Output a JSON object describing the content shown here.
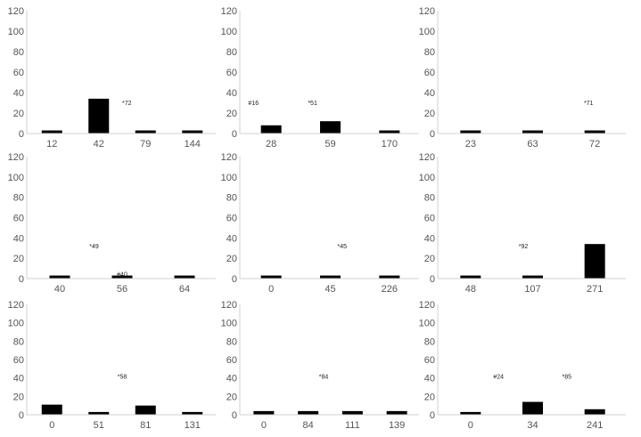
{
  "chart_data": [
    {
      "type": "bar",
      "categories": [
        "12",
        "42",
        "79",
        "144"
      ],
      "values": [
        3,
        34,
        3,
        3
      ],
      "ylim": [
        0,
        120
      ],
      "yticks": [
        0,
        20,
        40,
        60,
        80,
        100,
        120
      ],
      "annotations": [
        {
          "text": "*72",
          "x": 1.6,
          "y": 28
        }
      ]
    },
    {
      "type": "bar",
      "categories": [
        "28",
        "59",
        "170"
      ],
      "values": [
        8,
        12,
        3
      ],
      "ylim": [
        0,
        120
      ],
      "yticks": [
        0,
        20,
        40,
        60,
        80,
        100,
        120
      ],
      "annotations": [
        {
          "text": "#16",
          "x": -0.3,
          "y": 28
        },
        {
          "text": "*51",
          "x": 0.7,
          "y": 28
        }
      ]
    },
    {
      "type": "bar",
      "categories": [
        "23",
        "63",
        "72"
      ],
      "values": [
        3,
        3,
        3
      ],
      "ylim": [
        0,
        120
      ],
      "yticks": [
        0,
        20,
        40,
        60,
        80,
        100,
        120
      ],
      "annotations": [
        {
          "text": "*71",
          "x": 1.9,
          "y": 28
        }
      ]
    },
    {
      "type": "bar",
      "categories": [
        "40",
        "56",
        "64"
      ],
      "values": [
        3,
        3,
        3
      ],
      "ylim": [
        0,
        120
      ],
      "yticks": [
        0,
        20,
        40,
        60,
        80,
        100,
        120
      ],
      "annotations": [
        {
          "text": "*49",
          "x": 0.55,
          "y": 30
        },
        {
          "text": "#40",
          "x": 1.0,
          "y": 2
        }
      ]
    },
    {
      "type": "bar",
      "categories": [
        "0",
        "45",
        "226"
      ],
      "values": [
        3,
        3,
        3
      ],
      "ylim": [
        0,
        120
      ],
      "yticks": [
        0,
        20,
        40,
        60,
        80,
        100,
        120
      ],
      "annotations": [
        {
          "text": "*45",
          "x": 1.2,
          "y": 30
        }
      ]
    },
    {
      "type": "bar",
      "categories": [
        "48",
        "107",
        "271"
      ],
      "values": [
        3,
        3,
        34
      ],
      "ylim": [
        0,
        120
      ],
      "yticks": [
        0,
        20,
        40,
        60,
        80,
        100,
        120
      ],
      "annotations": [
        {
          "text": "*92",
          "x": 0.85,
          "y": 30
        }
      ]
    },
    {
      "type": "bar",
      "categories": [
        "0",
        "51",
        "81",
        "131"
      ],
      "values": [
        11,
        3,
        10,
        3
      ],
      "ylim": [
        0,
        120
      ],
      "yticks": [
        0,
        20,
        40,
        60,
        80,
        100,
        120
      ],
      "annotations": [
        {
          "text": "*58",
          "x": 1.5,
          "y": 39
        }
      ]
    },
    {
      "type": "bar",
      "categories": [
        "0",
        "84",
        "111",
        "139"
      ],
      "values": [
        4,
        4,
        4,
        4
      ],
      "ylim": [
        0,
        120
      ],
      "yticks": [
        0,
        20,
        40,
        60,
        80,
        100,
        120
      ],
      "annotations": [
        {
          "text": "*84",
          "x": 1.35,
          "y": 39
        }
      ]
    },
    {
      "type": "bar",
      "categories": [
        "0",
        "34",
        "241"
      ],
      "values": [
        3,
        14,
        6
      ],
      "ylim": [
        0,
        120
      ],
      "yticks": [
        0,
        20,
        40,
        60,
        80,
        100,
        120
      ],
      "annotations": [
        {
          "text": "#24",
          "x": 0.45,
          "y": 39
        },
        {
          "text": "*85",
          "x": 1.55,
          "y": 39
        }
      ]
    }
  ]
}
